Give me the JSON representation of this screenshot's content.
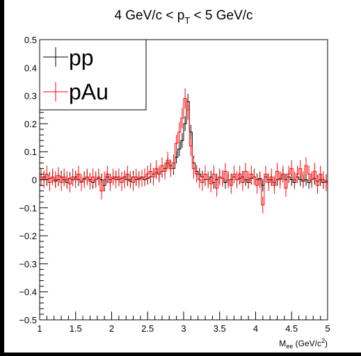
{
  "chart_data": {
    "type": "line",
    "title": "4 GeV/c < p_T <  5 GeV/c",
    "title_parts": {
      "main": "4 GeV/c < p",
      "sub": "T",
      "rest": " <  5 GeV/c"
    },
    "xlabel_parts": {
      "main": "M",
      "sub": "ee",
      "rest": " (GeV/c",
      "sup": "2",
      "end": ")"
    },
    "ylabel": "",
    "xlim": [
      1,
      5
    ],
    "ylim": [
      -0.5,
      0.5
    ],
    "x_ticks": [
      "1",
      "1.5",
      "2",
      "2.5",
      "3",
      "3.5",
      "4",
      "4.5",
      "5"
    ],
    "y_ticks": [
      "−0.5",
      "−0.4",
      "−0.3",
      "−0.2",
      "−0.1",
      "0",
      "0.1",
      "0.2",
      "0.3",
      "0.4",
      "0.5"
    ],
    "legend_position": "top-left",
    "grid": false,
    "series": [
      {
        "name": "pp",
        "color": "#000000",
        "x": [
          1.02,
          1.06,
          1.1,
          1.14,
          1.18,
          1.22,
          1.26,
          1.3,
          1.34,
          1.38,
          1.42,
          1.46,
          1.5,
          1.54,
          1.58,
          1.62,
          1.66,
          1.7,
          1.74,
          1.78,
          1.82,
          1.86,
          1.9,
          1.94,
          1.98,
          2.02,
          2.06,
          2.1,
          2.14,
          2.18,
          2.22,
          2.26,
          2.3,
          2.34,
          2.38,
          2.42,
          2.46,
          2.5,
          2.54,
          2.58,
          2.62,
          2.66,
          2.7,
          2.74,
          2.78,
          2.82,
          2.86,
          2.9,
          2.94,
          2.98,
          3.02,
          3.06,
          3.1,
          3.14,
          3.18,
          3.22,
          3.26,
          3.3,
          3.34,
          3.38,
          3.42,
          3.46,
          3.5,
          3.54,
          3.58,
          3.62,
          3.66,
          3.7,
          3.74,
          3.78,
          3.82,
          3.86,
          3.9,
          3.94,
          3.98,
          4.02,
          4.06,
          4.1,
          4.14,
          4.18,
          4.22,
          4.26,
          4.3,
          4.34,
          4.38,
          4.42,
          4.46,
          4.5,
          4.54,
          4.58,
          4.62,
          4.66,
          4.7,
          4.74,
          4.78,
          4.82,
          4.86,
          4.9,
          4.94,
          4.98
        ],
        "y": [
          0.0,
          0.01,
          0.0,
          0.005,
          0.01,
          -0.005,
          0.0,
          0.01,
          0.0,
          -0.01,
          0.005,
          0.0,
          0.01,
          0.0,
          -0.005,
          0.005,
          0.01,
          0.0,
          -0.01,
          0.0,
          0.005,
          0.0,
          -0.02,
          0.01,
          0.0,
          0.005,
          0.01,
          0.0,
          0.005,
          0.01,
          0.0,
          -0.005,
          0.01,
          0.0,
          0.005,
          0.01,
          0.0,
          0.005,
          0.01,
          0.02,
          0.025,
          0.02,
          0.03,
          0.04,
          0.06,
          0.05,
          0.04,
          0.08,
          0.11,
          0.14,
          0.2,
          0.28,
          0.17,
          0.06,
          0.03,
          0.02,
          0.01,
          0.0,
          0.0,
          0.01,
          -0.01,
          0.0,
          0.01,
          0.005,
          -0.01,
          0.0,
          0.0,
          0.01,
          0.0,
          0.005,
          0.01,
          0.0,
          -0.01,
          0.005,
          0.01,
          0.0,
          0.005,
          -0.02,
          0.01,
          0.0,
          0.0,
          -0.01,
          0.0,
          0.005,
          0.02,
          0.0,
          0.01,
          0.0,
          -0.01,
          0.01,
          0.0,
          -0.005,
          0.0,
          -0.01,
          0.0,
          0.005,
          -0.005,
          0.0,
          -0.01,
          -0.005
        ],
        "y_err": 0.022
      },
      {
        "name": "pAu",
        "color": "#ff0000",
        "x": [
          1.02,
          1.06,
          1.1,
          1.14,
          1.18,
          1.22,
          1.26,
          1.3,
          1.34,
          1.38,
          1.42,
          1.46,
          1.5,
          1.54,
          1.58,
          1.62,
          1.66,
          1.7,
          1.74,
          1.78,
          1.82,
          1.86,
          1.9,
          1.94,
          1.98,
          2.02,
          2.06,
          2.1,
          2.14,
          2.18,
          2.22,
          2.26,
          2.3,
          2.34,
          2.38,
          2.42,
          2.46,
          2.5,
          2.54,
          2.58,
          2.62,
          2.66,
          2.7,
          2.74,
          2.78,
          2.82,
          2.86,
          2.9,
          2.94,
          2.98,
          3.02,
          3.06,
          3.1,
          3.14,
          3.18,
          3.22,
          3.26,
          3.3,
          3.34,
          3.38,
          3.42,
          3.46,
          3.5,
          3.54,
          3.58,
          3.62,
          3.66,
          3.7,
          3.74,
          3.78,
          3.82,
          3.86,
          3.9,
          3.94,
          3.98,
          4.02,
          4.06,
          4.1,
          4.14,
          4.18,
          4.22,
          4.26,
          4.3,
          4.34,
          4.38,
          4.42,
          4.46,
          4.5,
          4.54,
          4.58,
          4.62,
          4.66,
          4.7,
          4.74,
          4.78,
          4.82,
          4.86,
          4.9,
          4.94,
          4.98
        ],
        "y": [
          0.01,
          0.0,
          0.02,
          -0.01,
          0.01,
          0.0,
          0.015,
          -0.01,
          0.01,
          0.0,
          -0.015,
          0.01,
          0.0,
          0.02,
          -0.01,
          0.0,
          0.01,
          -0.005,
          0.01,
          0.0,
          0.01,
          -0.04,
          0.0,
          0.02,
          -0.01,
          0.01,
          0.0,
          0.01,
          -0.01,
          0.0,
          0.02,
          0.0,
          -0.01,
          0.01,
          0.0,
          0.005,
          0.01,
          0.02,
          0.03,
          0.01,
          0.04,
          0.02,
          0.05,
          0.03,
          0.07,
          0.04,
          0.06,
          0.13,
          0.17,
          0.22,
          0.29,
          0.25,
          0.12,
          0.04,
          0.02,
          0.0,
          -0.01,
          0.02,
          0.0,
          -0.015,
          0.02,
          -0.03,
          0.01,
          0.005,
          0.03,
          0.0,
          -0.02,
          0.02,
          0.0,
          0.02,
          -0.01,
          0.03,
          0.0,
          0.02,
          0.01,
          -0.02,
          0.0,
          -0.09,
          0.02,
          -0.01,
          0.01,
          -0.02,
          0.03,
          0.0,
          0.02,
          -0.03,
          0.02,
          0.04,
          0.0,
          0.02,
          0.04,
          0.0,
          0.05,
          0.02,
          0.0,
          0.03,
          -0.02,
          0.02,
          0.0,
          -0.01
        ],
        "y_err": 0.03
      }
    ]
  }
}
